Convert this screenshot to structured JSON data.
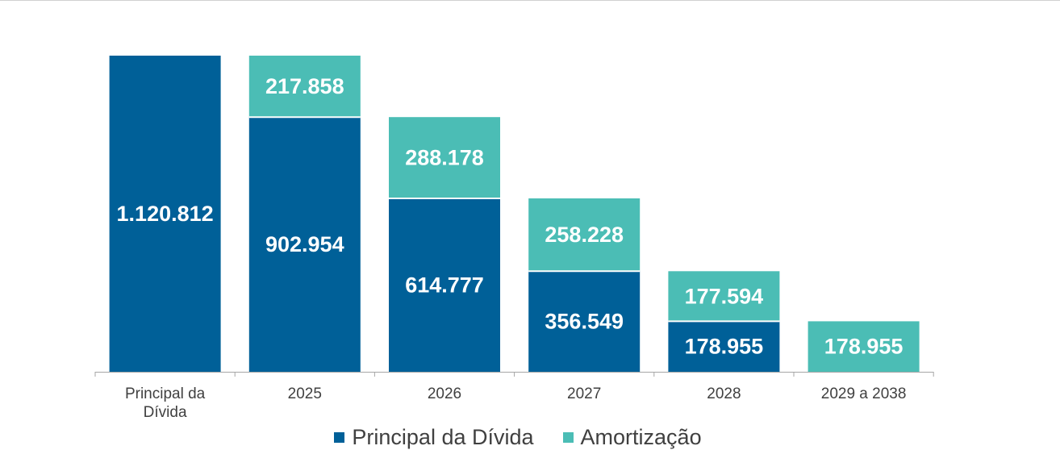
{
  "chart_data": {
    "type": "bar",
    "stacked": true,
    "title": "",
    "xlabel": "",
    "ylabel": "",
    "grid": false,
    "legend_position": "bottom",
    "ylim": [
      0,
      1120812
    ],
    "categories": [
      "Principal da Dívida",
      "2025",
      "2026",
      "2027",
      "2028",
      "2029 a 2038"
    ],
    "series": [
      {
        "name": "Principal da Dívida",
        "color": "#006098",
        "values": [
          1120812,
          902954,
          614777,
          356549,
          178955,
          null
        ],
        "labels": [
          "1.120.812",
          "902.954",
          "614.777",
          "356.549",
          "178.955",
          ""
        ]
      },
      {
        "name": "Amortização",
        "color": "#4bbdb5",
        "values": [
          null,
          217858,
          288178,
          258228,
          177594,
          178955
        ],
        "labels": [
          "",
          "217.858",
          "288.178",
          "258.228",
          "177.594",
          "178.955"
        ]
      }
    ]
  }
}
